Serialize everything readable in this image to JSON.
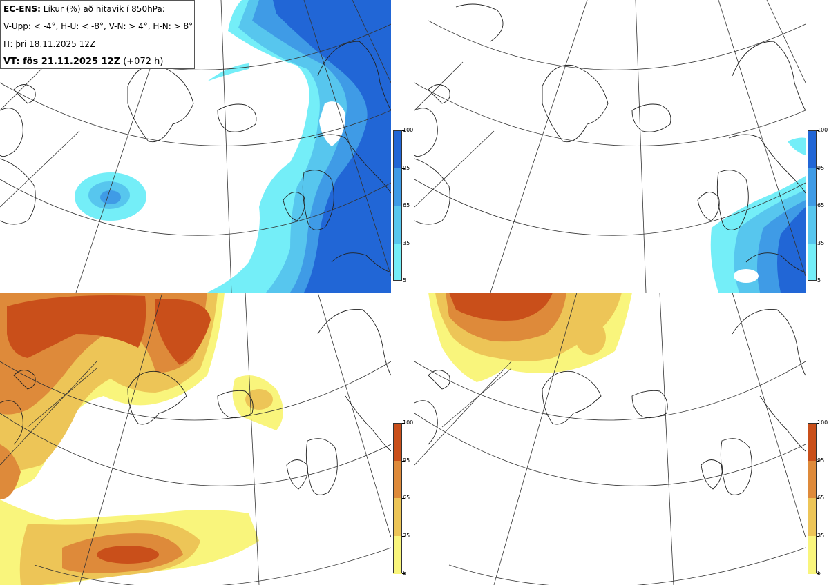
{
  "header": {
    "model": "EC-ENS:",
    "title_rest": "Líkur (%) að hitavik í 850hPa:",
    "thresholds": "V-Upp: < -4°, H-U: < -8°, V-N: > 4°, H-N: > 8°",
    "init_time": "IT: þri 18.11.2025 12Z",
    "valid_label": "VT: fös 21.11.2025 12Z",
    "lead": "(+072 h)"
  },
  "colorbars": {
    "cold": {
      "labels": [
        "100",
        "95",
        "65",
        "35",
        "5"
      ],
      "colors": [
        "#2166d6",
        "#3f9be6",
        "#57c6ee",
        "#74eef8"
      ]
    },
    "warm": {
      "labels": [
        "100",
        "95",
        "65",
        "35",
        "5"
      ],
      "colors": [
        "#c94f1a",
        "#de8a3a",
        "#edc557",
        "#f9f57c"
      ]
    }
  },
  "panels": [
    {
      "id": "upper-left",
      "field": "probability of anomaly < -4°",
      "scale": "cold"
    },
    {
      "id": "upper-right",
      "field": "probability of anomaly < -8°",
      "scale": "cold"
    },
    {
      "id": "lower-left",
      "field": "probability of anomaly > 4°",
      "scale": "warm"
    },
    {
      "id": "lower-right",
      "field": "probability of anomaly > 8°",
      "scale": "warm"
    }
  ]
}
